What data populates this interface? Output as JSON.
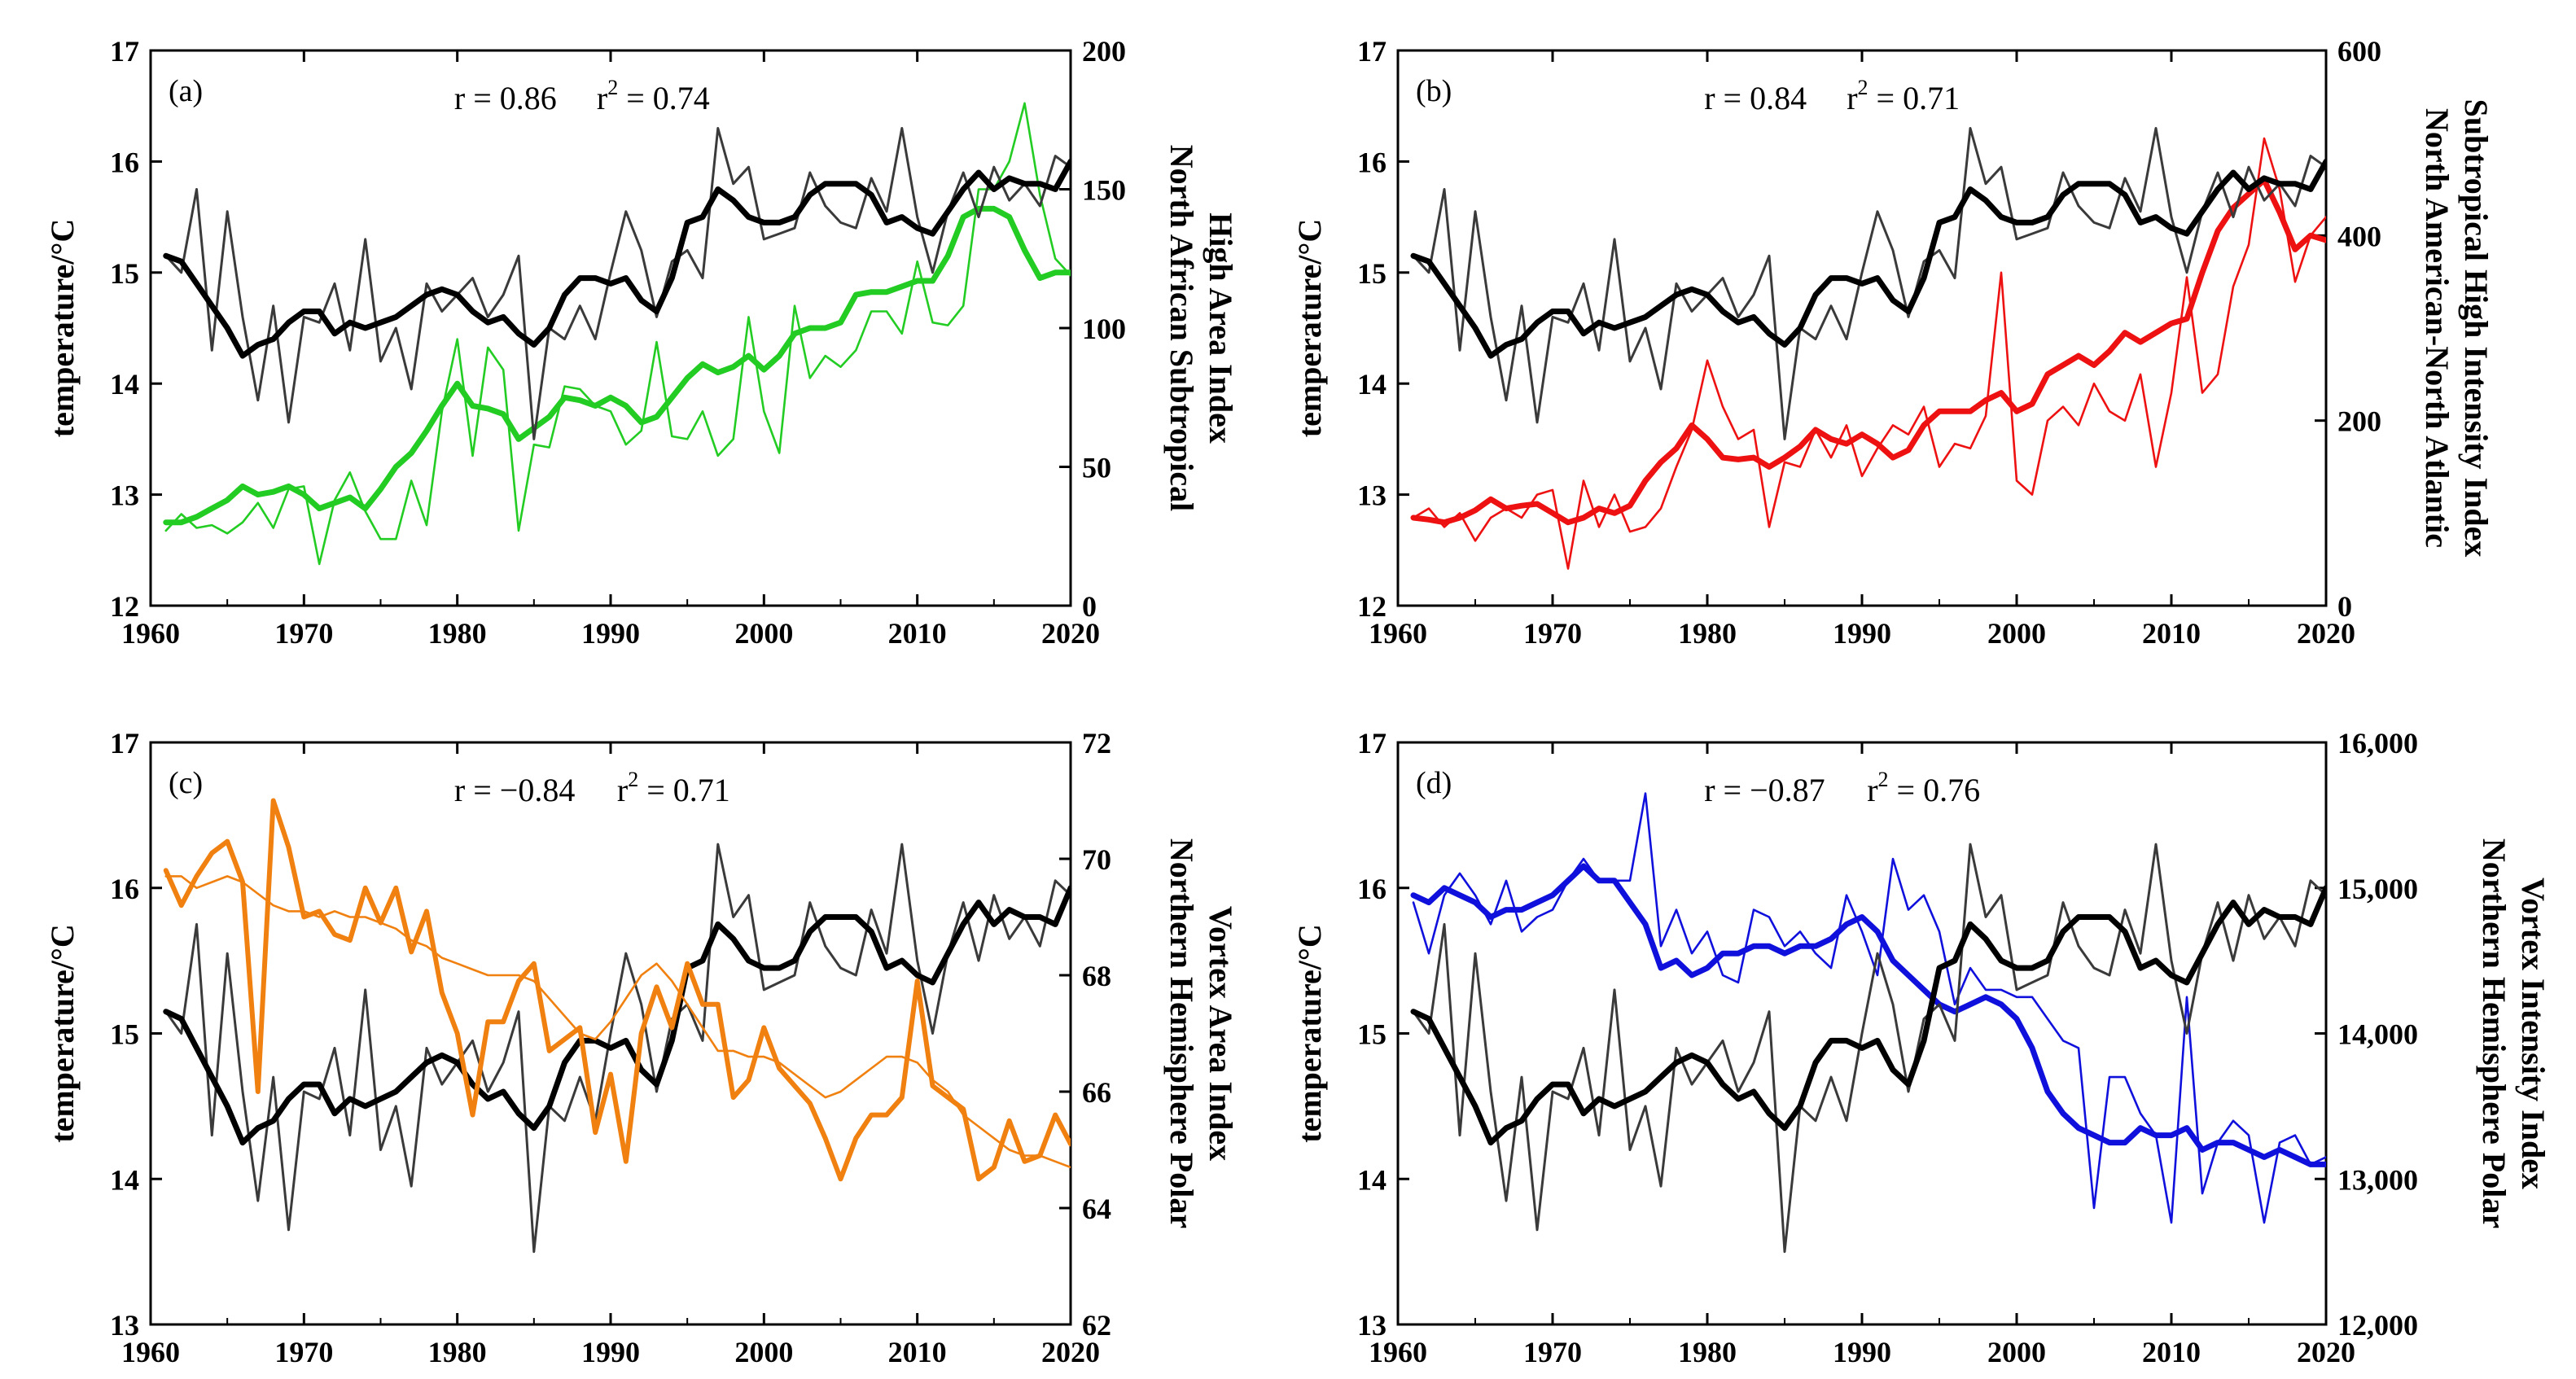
{
  "figure": {
    "x_ticks": [
      "1960",
      "1970",
      "1980",
      "1990",
      "2000",
      "2010",
      "2020"
    ],
    "temperature_color": "#000000",
    "temperature_raw_color": "#3a3a3a"
  },
  "temperature": {
    "years_start": 1961,
    "raw": [
      15.15,
      15.0,
      15.75,
      14.3,
      15.55,
      14.6,
      13.85,
      14.7,
      13.65,
      14.6,
      14.55,
      14.9,
      14.3,
      15.3,
      14.2,
      14.5,
      13.95,
      14.9,
      14.65,
      14.8,
      14.95,
      14.6,
      14.8,
      15.15,
      13.5,
      14.5,
      14.4,
      14.7,
      14.4,
      15.0,
      15.55,
      15.2,
      14.6,
      15.1,
      15.2,
      14.95,
      16.3,
      15.8,
      15.95,
      15.3,
      15.35,
      15.4,
      15.9,
      15.6,
      15.45,
      15.4,
      15.85,
      15.55,
      16.3,
      15.5,
      15.0,
      15.55,
      15.9,
      15.5,
      15.95,
      15.65,
      15.8,
      15.6,
      16.05,
      15.95
    ],
    "smooth": [
      15.15,
      15.1,
      14.9,
      14.7,
      14.5,
      14.25,
      14.35,
      14.4,
      14.55,
      14.65,
      14.65,
      14.45,
      14.55,
      14.5,
      14.55,
      14.6,
      14.7,
      14.8,
      14.85,
      14.8,
      14.65,
      14.55,
      14.6,
      14.45,
      14.35,
      14.5,
      14.8,
      14.95,
      14.95,
      14.9,
      14.95,
      14.75,
      14.65,
      14.95,
      15.45,
      15.5,
      15.75,
      15.65,
      15.5,
      15.45,
      15.45,
      15.5,
      15.7,
      15.8,
      15.8,
      15.8,
      15.7,
      15.45,
      15.5,
      15.4,
      15.35,
      15.55,
      15.75,
      15.9,
      15.75,
      15.85,
      15.8,
      15.8,
      15.75,
      16.0
    ]
  },
  "panels": [
    {
      "tag": "(a)",
      "r_text": "r = 0.86",
      "r2_prefix": "r",
      "r2_exp": "2",
      "r2_value": " = 0.74",
      "left_label": "temperature/°C",
      "right_label_lines": [
        "North African Subtropical",
        "High Area Index"
      ],
      "left_ticks": [
        "12",
        "13",
        "14",
        "15",
        "16",
        "17"
      ],
      "right_ticks": [
        "0",
        "50",
        "100",
        "150",
        "200"
      ],
      "index_color": "#22cc22"
    },
    {
      "tag": "(b)",
      "r_text": "r = 0.84",
      "r2_prefix": "r",
      "r2_exp": "2",
      "r2_value": " = 0.71",
      "left_label": "temperature/°C",
      "right_label_lines": [
        "North American-North Atlantic",
        "Subtropical High Intensity Index"
      ],
      "left_ticks": [
        "12",
        "13",
        "14",
        "15",
        "16",
        "17"
      ],
      "right_ticks": [
        "0",
        "200",
        "400",
        "600"
      ],
      "index_color": "#ee1111"
    },
    {
      "tag": "(c)",
      "r_text": "r = −0.84",
      "r2_prefix": "r",
      "r2_exp": "2",
      "r2_value": " = 0.71",
      "left_label": "temperature/°C",
      "right_label_lines": [
        "Northern Hemisphere Polar",
        "Vortex Area Index"
      ],
      "left_ticks": [
        "13",
        "14",
        "15",
        "16",
        "17"
      ],
      "right_ticks": [
        "62",
        "64",
        "66",
        "68",
        "70",
        "72"
      ],
      "index_color": "#f08010"
    },
    {
      "tag": "(d)",
      "r_text": "r = −0.87",
      "r2_prefix": "r",
      "r2_exp": "2",
      "r2_value": " = 0.76",
      "left_label": "temperature/°C",
      "right_label_lines": [
        "Northern Hemisphere Polar",
        "Vortex Intensity Index"
      ],
      "left_ticks": [
        "13",
        "14",
        "15",
        "16",
        "17"
      ],
      "right_ticks": [
        "12,000",
        "13,000",
        "14,000",
        "15,000",
        "16,000"
      ],
      "index_color": "#1010dd"
    }
  ],
  "chart_data": [
    {
      "type": "line",
      "title": "(a) r = 0.86 r2 = 0.74",
      "xlabel": "",
      "ylabel": "temperature/°C",
      "y2label": "North African Subtropical High Area Index",
      "xlim": [
        1960,
        2020
      ],
      "ylim": [
        12,
        17
      ],
      "y2lim": [
        0,
        200
      ],
      "x_start": 1961,
      "series": [
        {
          "name": "temperature (raw)",
          "axis": "left",
          "ref": "temperature.raw"
        },
        {
          "name": "temperature (smoothed)",
          "axis": "left",
          "ref": "temperature.smooth"
        },
        {
          "name": "North African Subtropical High Area Index (raw)",
          "axis": "right",
          "values": [
            27,
            33,
            28,
            29,
            26,
            30,
            37,
            28,
            42,
            43,
            15,
            38,
            48,
            34,
            24,
            24,
            45,
            29,
            70,
            96,
            54,
            93,
            85,
            27,
            58,
            57,
            79,
            78,
            72,
            70,
            58,
            63,
            95,
            61,
            60,
            70,
            54,
            60,
            104,
            70,
            55,
            108,
            82,
            90,
            86,
            92,
            106,
            106,
            98,
            124,
            102,
            101,
            108,
            150,
            150,
            160,
            181,
            148,
            125,
            119
          ]
        },
        {
          "name": "North African Subtropical High Area Index (smoothed)",
          "axis": "right",
          "values": [
            30,
            30,
            32,
            35,
            38,
            43,
            40,
            41,
            43,
            40,
            35,
            37,
            39,
            35,
            42,
            50,
            55,
            63,
            72,
            80,
            72,
            71,
            69,
            60,
            64,
            68,
            75,
            74,
            72,
            75,
            72,
            66,
            68,
            75,
            82,
            87,
            84,
            86,
            90,
            85,
            90,
            98,
            100,
            100,
            102,
            112,
            113,
            113,
            115,
            117,
            117,
            126,
            140,
            143,
            143,
            140,
            128,
            118,
            120,
            120
          ]
        }
      ]
    },
    {
      "type": "line",
      "title": "(b) r = 0.84 r2 = 0.71",
      "xlabel": "",
      "ylabel": "temperature/°C",
      "y2label": "North American-North Atlantic Subtropical High Intensity Index",
      "xlim": [
        1960,
        2020
      ],
      "ylim": [
        12,
        17
      ],
      "y2lim": [
        0,
        600
      ],
      "x_start": 1961,
      "series": [
        {
          "name": "temperature (raw)",
          "axis": "left",
          "ref": "temperature.raw"
        },
        {
          "name": "temperature (smoothed)",
          "axis": "left",
          "ref": "temperature.smooth"
        },
        {
          "name": "North American-North Atlantic Subtropical High Intensity Index (raw)",
          "axis": "right",
          "values": [
            95,
            105,
            85,
            100,
            70,
            95,
            105,
            95,
            120,
            125,
            40,
            135,
            85,
            120,
            80,
            85,
            105,
            150,
            190,
            265,
            215,
            180,
            190,
            85,
            155,
            150,
            190,
            160,
            195,
            140,
            170,
            195,
            185,
            215,
            150,
            175,
            170,
            205,
            360,
            135,
            120,
            200,
            215,
            195,
            240,
            210,
            200,
            250,
            150,
            230,
            355,
            230,
            250,
            345,
            390,
            505,
            450,
            350,
            400,
            420
          ]
        },
        {
          "name": "North American-North Atlantic Subtropical High Intensity Index (smoothed)",
          "axis": "right",
          "values": [
            95,
            93,
            90,
            95,
            103,
            115,
            105,
            108,
            110,
            100,
            90,
            95,
            105,
            100,
            108,
            135,
            155,
            170,
            195,
            180,
            160,
            158,
            160,
            150,
            160,
            172,
            190,
            180,
            175,
            185,
            175,
            160,
            168,
            195,
            210,
            210,
            210,
            222,
            230,
            210,
            218,
            250,
            260,
            270,
            260,
            275,
            295,
            285,
            295,
            305,
            310,
            360,
            405,
            430,
            445,
            460,
            425,
            385,
            400,
            395
          ]
        }
      ]
    },
    {
      "type": "line",
      "title": "(c) r = −0.84 r2 = 0.71",
      "xlabel": "",
      "ylabel": "temperature/°C",
      "y2label": "Northern Hemisphere Polar Vortex Area Index",
      "xlim": [
        1960,
        2020
      ],
      "ylim": [
        13,
        17
      ],
      "y2lim": [
        62,
        72
      ],
      "x_start": 1961,
      "series": [
        {
          "name": "temperature (raw)",
          "axis": "left",
          "ref": "temperature.raw"
        },
        {
          "name": "temperature (smoothed)",
          "axis": "left",
          "ref": "temperature.smooth"
        },
        {
          "name": "Northern Hemisphere Polar Vortex Area Index (smoothed)",
          "axis": "right",
          "values": [
            69.7,
            69.7,
            69.5,
            69.6,
            69.7,
            69.6,
            69.4,
            69.2,
            69.1,
            69.1,
            69.0,
            69.1,
            69.0,
            69.0,
            68.9,
            68.8,
            68.6,
            68.5,
            68.3,
            68.2,
            68.1,
            68.0,
            68.0,
            68.0,
            67.9,
            67.6,
            67.3,
            67.0,
            66.9,
            67.2,
            67.6,
            68.0,
            68.2,
            67.9,
            67.5,
            67.1,
            66.7,
            66.7,
            66.6,
            66.6,
            66.5,
            66.3,
            66.1,
            65.9,
            66.0,
            66.2,
            66.4,
            66.6,
            66.6,
            66.5,
            66.2,
            66.0,
            65.6,
            65.4,
            65.2,
            65.0,
            64.9,
            64.9,
            64.8,
            64.7
          ]
        },
        {
          "name": "Northern Hemisphere Polar Vortex Area Index (raw)",
          "axis": "right",
          "values": [
            69.8,
            69.2,
            69.7,
            70.1,
            70.3,
            69.6,
            66.0,
            71.0,
            70.2,
            69.0,
            69.1,
            68.7,
            68.6,
            69.5,
            68.9,
            69.5,
            68.4,
            69.1,
            67.7,
            67.0,
            65.6,
            67.2,
            67.2,
            67.9,
            68.2,
            66.7,
            66.9,
            67.1,
            65.3,
            66.3,
            64.8,
            67.0,
            67.8,
            67.1,
            68.2,
            67.5,
            67.5,
            65.9,
            66.2,
            67.1,
            66.4,
            66.1,
            65.8,
            65.2,
            64.5,
            65.2,
            65.6,
            65.6,
            65.9,
            67.9,
            66.1,
            65.9,
            65.7,
            64.5,
            64.7,
            65.5,
            64.8,
            64.9,
            65.6,
            65.1
          ]
        }
      ]
    },
    {
      "type": "line",
      "title": "(d) r = −0.87 r2 = 0.76",
      "xlabel": "",
      "ylabel": "temperature/°C",
      "y2label": "Northern Hemisphere Polar Vortex Intensity Index",
      "xlim": [
        1960,
        2020
      ],
      "ylim": [
        13,
        17
      ],
      "y2lim": [
        12000,
        16000
      ],
      "x_start": 1961,
      "series": [
        {
          "name": "temperature (raw)",
          "axis": "left",
          "ref": "temperature.raw"
        },
        {
          "name": "temperature (smoothed)",
          "axis": "left",
          "ref": "temperature.smooth"
        },
        {
          "name": "Northern Hemisphere Polar Vortex Intensity Index (raw)",
          "axis": "right",
          "values": [
            14900,
            14550,
            14950,
            15100,
            14950,
            14750,
            15050,
            14700,
            14800,
            14850,
            15050,
            15200,
            15050,
            15050,
            15050,
            15650,
            14600,
            14850,
            14550,
            14700,
            14400,
            14350,
            14850,
            14800,
            14600,
            14700,
            14550,
            14450,
            14950,
            14700,
            14400,
            15200,
            14850,
            14950,
            14700,
            14200,
            14450,
            14300,
            14300,
            14250,
            14250,
            14100,
            13950,
            13900,
            12800,
            13700,
            13700,
            13450,
            13300,
            12700,
            14250,
            12900,
            13250,
            13400,
            13300,
            12700,
            13250,
            13300,
            13100,
            13150
          ]
        },
        {
          "name": "Northern Hemisphere Polar Vortex Intensity Index (smoothed)",
          "axis": "right",
          "values": [
            14950,
            14900,
            15000,
            14950,
            14900,
            14800,
            14850,
            14850,
            14900,
            14950,
            15050,
            15150,
            15050,
            15050,
            14900,
            14750,
            14450,
            14500,
            14400,
            14450,
            14550,
            14550,
            14600,
            14600,
            14550,
            14600,
            14600,
            14650,
            14750,
            14800,
            14700,
            14500,
            14400,
            14300,
            14200,
            14150,
            14200,
            14250,
            14200,
            14100,
            13900,
            13600,
            13450,
            13350,
            13300,
            13250,
            13250,
            13350,
            13300,
            13300,
            13350,
            13200,
            13250,
            13250,
            13200,
            13150,
            13200,
            13150,
            13100,
            13100
          ]
        }
      ]
    }
  ]
}
